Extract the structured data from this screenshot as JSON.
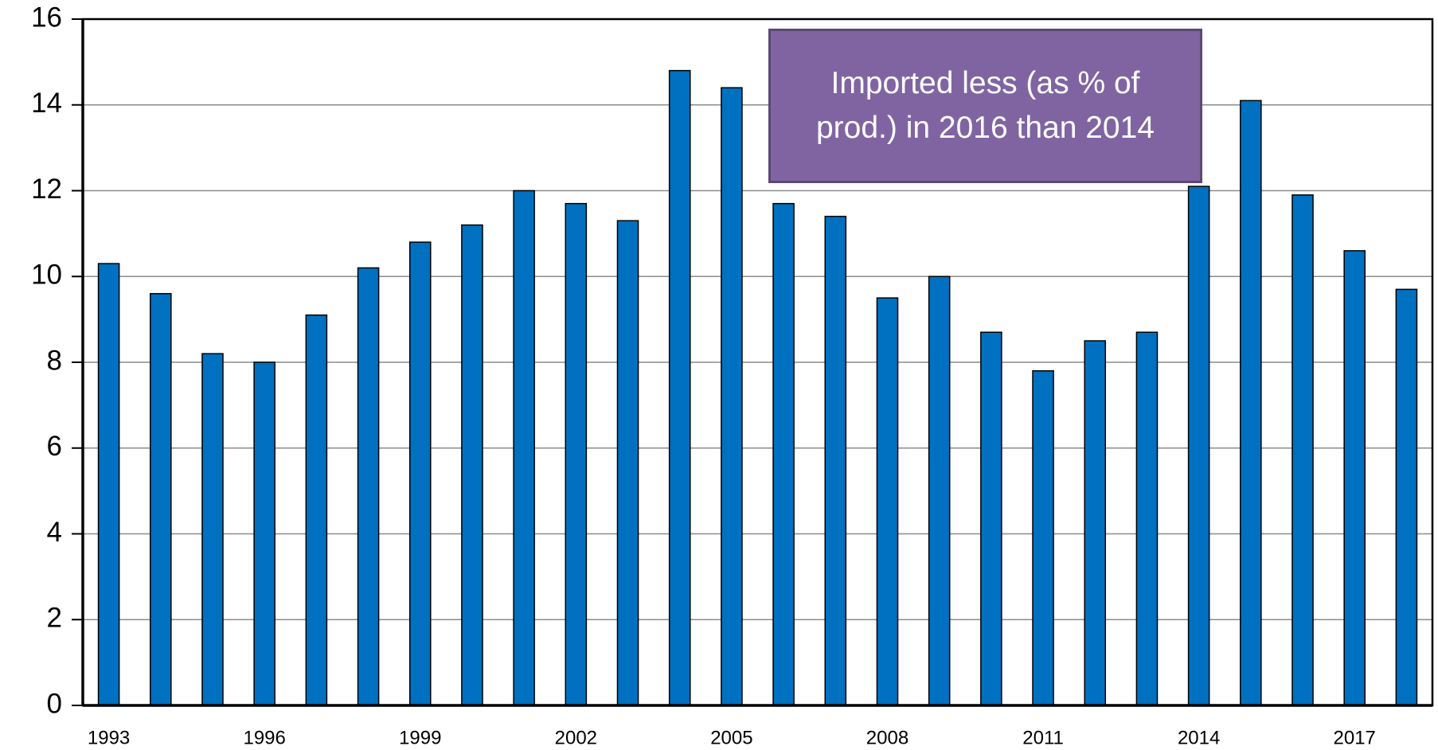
{
  "chart_data": {
    "type": "bar",
    "annotation": "Imported less (as % of prod.) in 2016 than 2014",
    "categories": [
      "1993",
      null,
      null,
      "1996",
      null,
      null,
      "1999",
      null,
      null,
      "2002",
      null,
      null,
      "2005",
      null,
      null,
      "2008",
      null,
      null,
      "2011",
      null,
      null,
      "2014",
      null,
      null,
      "2017",
      null
    ],
    "values": [
      10.3,
      9.6,
      8.2,
      8.0,
      9.1,
      10.2,
      10.8,
      11.2,
      12.0,
      11.7,
      11.3,
      14.8,
      14.4,
      11.7,
      11.4,
      9.5,
      10.0,
      8.7,
      7.8,
      8.5,
      8.7,
      12.1,
      14.1,
      11.9,
      10.6,
      9.7
    ],
    "color": "#0070c0",
    "ylim": [
      0,
      16
    ],
    "yticks": [
      0,
      2,
      4,
      6,
      8,
      10,
      12,
      14,
      16
    ],
    "grid": true
  }
}
